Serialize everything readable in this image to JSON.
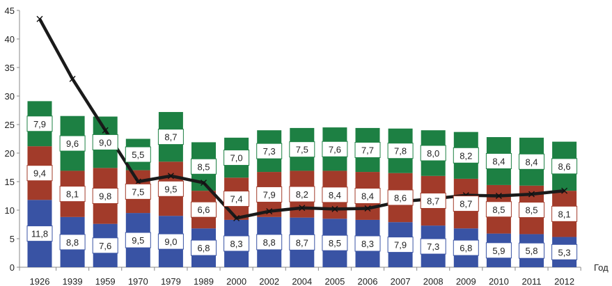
{
  "chart_data": {
    "type": "bar",
    "stacked": true,
    "categories": [
      "1926",
      "1939",
      "1959",
      "1970",
      "1979",
      "1989",
      "2000",
      "2002",
      "2004",
      "2005",
      "2006",
      "2007",
      "2008",
      "2009",
      "2010",
      "2011",
      "2012"
    ],
    "series": [
      {
        "values": [
          11.8,
          8.8,
          7.6,
          9.5,
          9.0,
          6.8,
          8.3,
          8.8,
          8.7,
          8.5,
          8.3,
          7.9,
          7.3,
          6.8,
          5.9,
          5.8,
          5.3
        ],
        "labels": [
          "11,8",
          "8,8",
          "7,6",
          "9,5",
          "9,0",
          "6,8",
          "8,3",
          "8,8",
          "8,7",
          "8,5",
          "8,3",
          "7,9",
          "7,3",
          "6,8",
          "5,9",
          "5,8",
          "5,3"
        ]
      },
      {
        "values": [
          9.4,
          8.1,
          9.8,
          7.5,
          9.5,
          6.6,
          7.4,
          7.9,
          8.2,
          8.4,
          8.4,
          8.6,
          8.7,
          8.7,
          8.5,
          8.5,
          8.1
        ],
        "labels": [
          "9,4",
          "8,1",
          "9,8",
          "7,5",
          "9,5",
          "6,6",
          "7,4",
          "7,9",
          "8,2",
          "8,4",
          "8,4",
          "8,6",
          "8,7",
          "8,7",
          "8,5",
          "8,5",
          "8,1"
        ]
      },
      {
        "values": [
          7.9,
          9.6,
          9.0,
          5.5,
          8.7,
          8.5,
          7.0,
          7.3,
          7.5,
          7.6,
          7.7,
          7.8,
          8.0,
          8.2,
          8.4,
          8.4,
          8.6
        ],
        "labels": [
          "7,9",
          "9,6",
          "9,0",
          "5,5",
          "8,7",
          "8,5",
          "7,0",
          "7,3",
          "7,5",
          "7,6",
          "7,7",
          "7,8",
          "8,0",
          "8,2",
          "8,4",
          "8,4",
          "8,6"
        ]
      }
    ],
    "line": {
      "values": [
        43.5,
        33.0,
        24.0,
        15.0,
        16.0,
        14.8,
        8.6,
        9.8,
        10.4,
        10.2,
        10.3,
        11.5,
        12.0,
        12.6,
        12.5,
        12.8,
        13.4
      ]
    },
    "xlabel": "Год",
    "ylabel": "",
    "ylim": [
      0,
      45
    ],
    "yticks": [
      0,
      5,
      10,
      15,
      20,
      25,
      30,
      35,
      40,
      45
    ],
    "colors": [
      "#3953a4",
      "#a23b2a",
      "#1d8043",
      "#1a1a1a"
    ],
    "grid": false
  }
}
